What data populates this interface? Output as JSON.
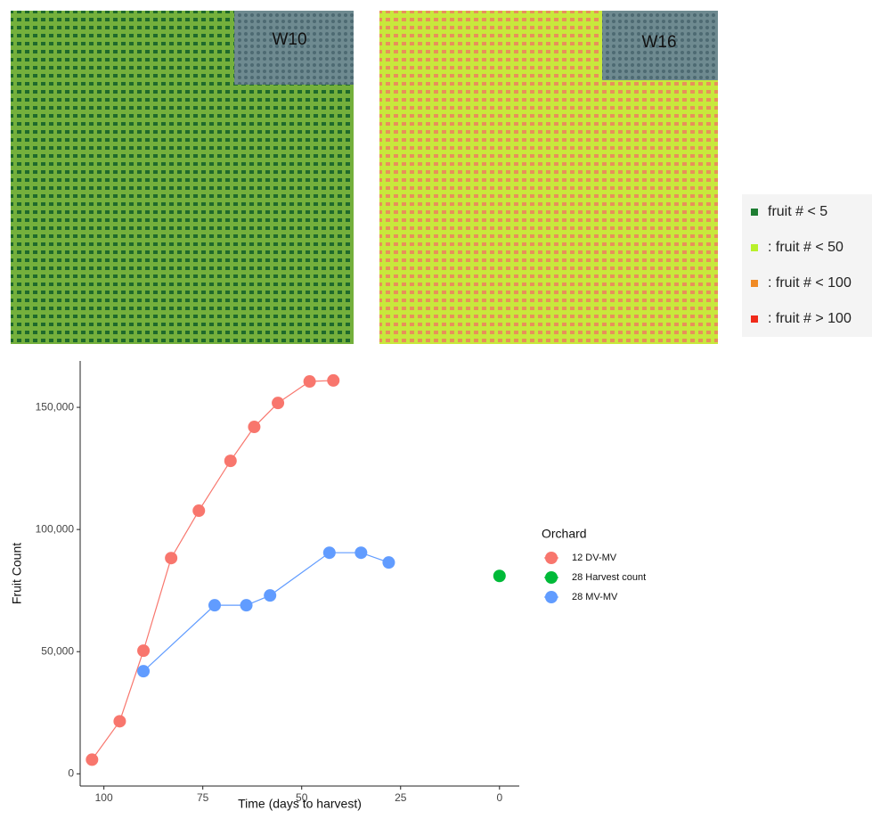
{
  "panels": [
    {
      "label": "W10"
    },
    {
      "label": "W16"
    }
  ],
  "map_legend": {
    "items": [
      {
        "label": "fruit # < 5",
        "color": "#1e7d32"
      },
      {
        "label": ": fruit # < 50",
        "color": "#b8f02a"
      },
      {
        "label": ": fruit # < 100",
        "color": "#f08a24"
      },
      {
        "label": ": fruit # > 100",
        "color": "#f02a1a"
      }
    ]
  },
  "chart_data": {
    "type": "line",
    "x_label": "Time (days to harvest)",
    "y_label": "Fruit Count",
    "legend_title": "Orchard",
    "xlim": [
      106,
      -5
    ],
    "xticks": [
      100,
      75,
      50,
      25,
      0
    ],
    "ylim": [
      -5000,
      169000
    ],
    "yticks": [
      0,
      {
        "value": 50000,
        "label": "50,000"
      },
      {
        "value": 100000,
        "label": "100,000"
      },
      {
        "value": 150000,
        "label": "150,000"
      }
    ],
    "grid": false,
    "series": [
      {
        "name": "12 DV-MV",
        "color": "#f8766d",
        "x": [
          103,
          96,
          90,
          83,
          76,
          68,
          62,
          56,
          48,
          42
        ],
        "values": [
          5800,
          21500,
          50400,
          88300,
          107700,
          128100,
          142000,
          151800,
          160600,
          161000
        ]
      },
      {
        "name": "28 Harvest count",
        "color": "#00ba38",
        "x": [
          0
        ],
        "values": [
          81000
        ]
      },
      {
        "name": "28 MV-MV",
        "color": "#619cff",
        "x": [
          90,
          72,
          64,
          58,
          43,
          35,
          28
        ],
        "values": [
          42000,
          69000,
          69000,
          73000,
          90500,
          90500,
          86500
        ]
      }
    ]
  }
}
